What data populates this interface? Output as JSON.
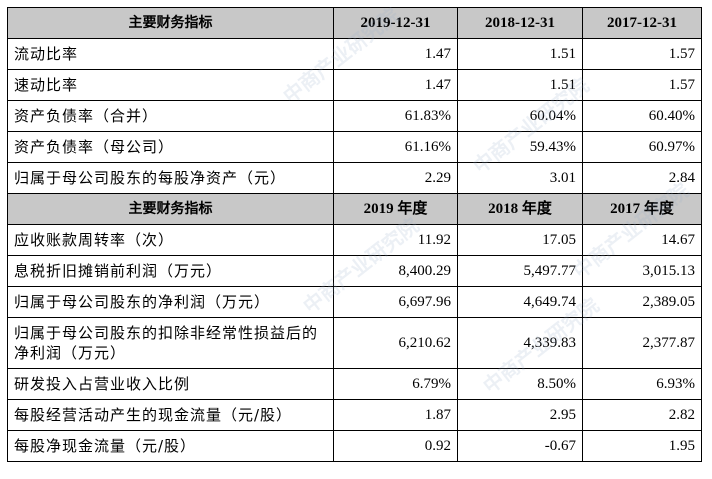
{
  "watermark": "中商产业研究院",
  "section1": {
    "header": {
      "label": "主要财务指标",
      "years": [
        "2019-12-31",
        "2018-12-31",
        "2017-12-31"
      ]
    },
    "rows": [
      {
        "label": "流动比率",
        "values": [
          "1.47",
          "1.51",
          "1.57"
        ]
      },
      {
        "label": "速动比率",
        "values": [
          "1.47",
          "1.51",
          "1.57"
        ]
      },
      {
        "label": "资产负债率（合并）",
        "values": [
          "61.83%",
          "60.04%",
          "60.40%"
        ]
      },
      {
        "label": "资产负债率（母公司）",
        "values": [
          "61.16%",
          "59.43%",
          "60.97%"
        ]
      },
      {
        "label": "归属于母公司股东的每股净资产（元）",
        "values": [
          "2.29",
          "3.01",
          "2.84"
        ]
      }
    ]
  },
  "section2": {
    "header": {
      "label": "主要财务指标",
      "years": [
        "2019 年度",
        "2018 年度",
        "2017 年度"
      ]
    },
    "rows": [
      {
        "label": "应收账款周转率（次）",
        "values": [
          "11.92",
          "17.05",
          "14.67"
        ]
      },
      {
        "label": "息税折旧摊销前利润（万元）",
        "values": [
          "8,400.29",
          "5,497.77",
          "3,015.13"
        ]
      },
      {
        "label": "归属于母公司股东的净利润（万元）",
        "values": [
          "6,697.96",
          "4,649.74",
          "2,389.05"
        ]
      },
      {
        "label": "归属于母公司股东的扣除非经常性损益后的净利润（万元）",
        "values": [
          "6,210.62",
          "4,339.83",
          "2,377.87"
        ]
      },
      {
        "label": "研发投入占营业收入比例",
        "values": [
          "6.79%",
          "8.50%",
          "6.93%"
        ]
      },
      {
        "label": "每股经营活动产生的现金流量（元/股）",
        "values": [
          "1.87",
          "2.95",
          "2.82"
        ]
      },
      {
        "label": "每股净现金流量（元/股）",
        "values": [
          "0.92",
          "-0.67",
          "1.95"
        ]
      }
    ]
  }
}
